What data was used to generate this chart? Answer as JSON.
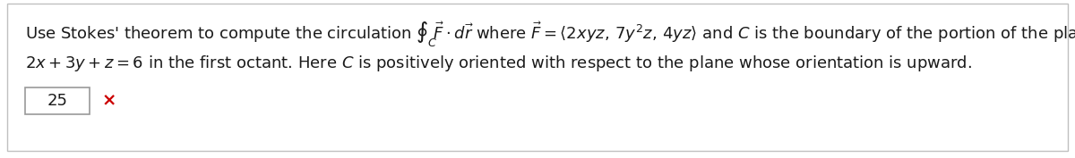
{
  "background_color": "#ffffff",
  "border_color": "#c0c0c0",
  "answer_box_text": "25",
  "cross_color": "#cc0000",
  "text_color": "#1a1a1a",
  "font_size": 13.0,
  "fig_width": 12.0,
  "fig_height": 1.77,
  "dpi": 100,
  "line1_plain": "Use Stokes’ theorem to compute the circulation ",
  "line1_math": "$\\oint_C \\!\\vec{F} \\cdot d\\vec{r}$ where $\\vec{F} = \\langle 2xyz,\\, 7y^2z,\\, 4yz \\rangle$ and $C$ is the boundary of the portion of the plane",
  "line2": "$2x + 3y + z = 6$ in the first octant. Here $C$ is positively oriented with respect to the plane whose orientation is upward."
}
